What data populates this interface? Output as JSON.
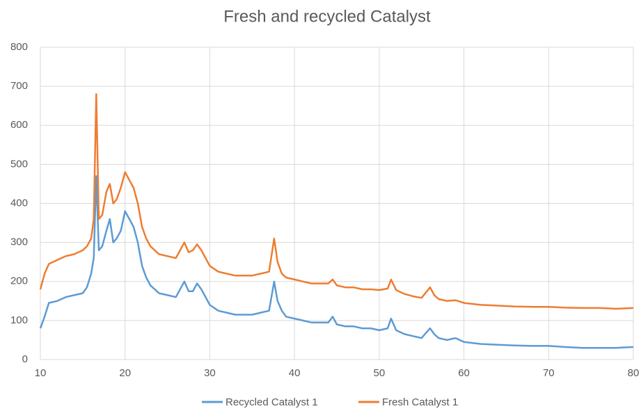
{
  "chart_data": {
    "type": "line",
    "title": "Fresh and recycled Catalyst",
    "x": [
      10,
      10.5,
      11,
      12,
      13,
      14,
      15,
      15.5,
      16,
      16.3,
      16.6,
      16.9,
      17.3,
      17.8,
      18.2,
      18.6,
      19,
      19.5,
      20,
      20.5,
      21,
      21.5,
      22,
      22.5,
      23,
      24,
      25,
      26,
      27,
      27.5,
      28,
      28.5,
      29,
      30,
      31,
      32,
      33,
      34,
      35,
      36,
      37,
      37.6,
      38,
      38.5,
      39,
      40,
      41,
      42,
      43,
      44,
      44.5,
      45,
      46,
      47,
      48,
      49,
      50,
      51,
      51.4,
      52,
      53,
      54,
      55,
      56,
      56.5,
      57,
      58,
      59,
      60,
      62,
      64,
      66,
      68,
      70,
      72,
      74,
      76,
      78,
      80
    ],
    "series": [
      {
        "name": "Recycled Catalyst 1",
        "color": "#5b9bd5",
        "values": [
          80,
          110,
          145,
          150,
          160,
          165,
          170,
          185,
          220,
          260,
          470,
          280,
          290,
          330,
          360,
          300,
          310,
          330,
          380,
          360,
          340,
          300,
          240,
          210,
          190,
          170,
          165,
          160,
          200,
          175,
          175,
          195,
          180,
          140,
          125,
          120,
          115,
          115,
          115,
          120,
          125,
          200,
          150,
          125,
          110,
          105,
          100,
          95,
          95,
          95,
          110,
          90,
          85,
          85,
          80,
          80,
          75,
          80,
          105,
          75,
          65,
          60,
          55,
          80,
          65,
          55,
          50,
          55,
          45,
          40,
          38,
          36,
          35,
          35,
          32,
          30,
          30,
          30,
          32
        ]
      },
      {
        "name": "Fresh Catalyst 1",
        "color": "#ed7d31",
        "values": [
          180,
          220,
          245,
          255,
          265,
          270,
          280,
          290,
          310,
          360,
          680,
          360,
          370,
          430,
          450,
          400,
          410,
          440,
          480,
          460,
          440,
          400,
          340,
          310,
          290,
          270,
          265,
          260,
          300,
          275,
          280,
          295,
          280,
          240,
          225,
          220,
          215,
          215,
          215,
          220,
          225,
          310,
          250,
          220,
          210,
          205,
          200,
          195,
          195,
          195,
          205,
          190,
          185,
          185,
          180,
          180,
          178,
          182,
          205,
          178,
          168,
          162,
          158,
          185,
          165,
          155,
          150,
          152,
          145,
          140,
          138,
          136,
          135,
          135,
          133,
          132,
          132,
          130,
          132
        ]
      }
    ],
    "xlim": [
      10,
      80
    ],
    "xticks": [
      10,
      20,
      30,
      40,
      50,
      60,
      70,
      80
    ],
    "ylim": [
      0,
      800
    ],
    "yticks": [
      0,
      100,
      200,
      300,
      400,
      500,
      600,
      700,
      800
    ],
    "grid": true,
    "legend": "bottom"
  }
}
